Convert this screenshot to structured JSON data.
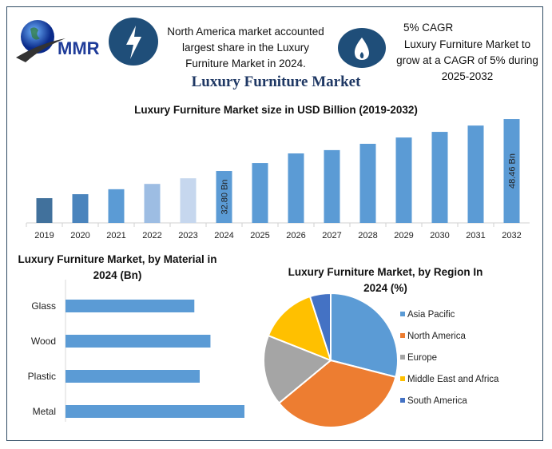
{
  "header": {
    "logo_text": "MMR",
    "highlight1": {
      "icon": "lightning-bolt-icon",
      "text": "North America market accounted largest share in the Luxury Furniture Market in 2024."
    },
    "highlight2": {
      "icon": "flame-icon",
      "title": "5% CAGR",
      "text": "Luxury Furniture Market to grow at a CAGR of 5% during 2025-2032"
    },
    "title": "Luxury Furniture Market"
  },
  "colors": {
    "frame": "#2f4b63",
    "icon_circle": "#1f4e79",
    "title": "#1f3864",
    "bar": "#5b9bd5"
  },
  "chart_data": [
    {
      "type": "bar",
      "title": "Luxury Furniture Market size in USD Billion (2019-2032)",
      "categories": [
        "2019",
        "2020",
        "2021",
        "2022",
        "2023",
        "2024",
        "2025",
        "2026",
        "2027",
        "2028",
        "2029",
        "2030",
        "2031",
        "2032"
      ],
      "values": [
        24.6,
        25.8,
        27.3,
        28.9,
        30.6,
        32.8,
        35.2,
        38.1,
        39.1,
        41.0,
        42.9,
        44.6,
        46.5,
        48.46
      ],
      "bar_colors": [
        "#41719c",
        "#4a84bd",
        "#5b9bd5",
        "#9dbde3",
        "#c6d7ee",
        "#5b9bd5",
        "#5b9bd5",
        "#5b9bd5",
        "#5b9bd5",
        "#5b9bd5",
        "#5b9bd5",
        "#5b9bd5",
        "#5b9bd5",
        "#5b9bd5"
      ],
      "data_labels": {
        "2024": "32.80 Bn",
        "2032": "48.46 Bn"
      },
      "xlabel": "",
      "ylabel": "",
      "grid": false
    },
    {
      "type": "bar",
      "orientation": "horizontal",
      "title": "Luxury Furniture Market, by Material in 2024 (Bn)",
      "categories": [
        "Glass",
        "Wood",
        "Plastic",
        "Metal"
      ],
      "values": [
        7.2,
        8.1,
        7.5,
        10.0
      ],
      "color": "#5b9bd5",
      "grid": false
    },
    {
      "type": "pie",
      "title": "Luxury Furniture Market, by Region In 2024 (%)",
      "labels": [
        "Asia Pacific",
        "North America",
        "Europe",
        "Middle East and Africa",
        "South America"
      ],
      "values": [
        29,
        35,
        17,
        14,
        5
      ],
      "colors": [
        "#5b9bd5",
        "#ed7d31",
        "#a5a5a5",
        "#ffc000",
        "#4472c4"
      ],
      "legend": "right"
    }
  ]
}
